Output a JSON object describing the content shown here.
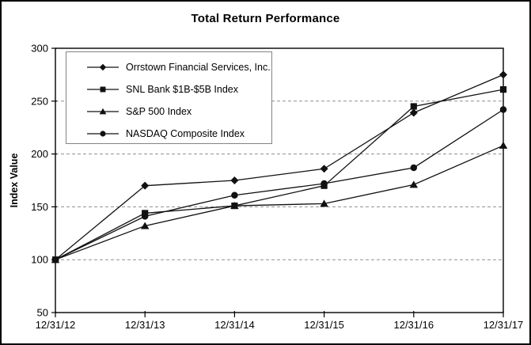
{
  "chart_data": {
    "type": "line",
    "title": "Total Return Performance",
    "ylabel": "Index Value",
    "xlabel": "",
    "x_labels": [
      "12/31/12",
      "12/31/13",
      "12/31/14",
      "12/31/15",
      "12/31/16",
      "12/31/17"
    ],
    "ylim": [
      50,
      300
    ],
    "y_ticks": [
      300,
      250,
      200,
      150,
      100,
      50
    ],
    "grid": "horizontal dashed gray lines at 100,150,200,250; solid box around plot",
    "legend_position": "inset top-left",
    "line_color": "#111111",
    "grid_color": "#909090",
    "series": [
      {
        "name": "Orrstown Financial Services, Inc.",
        "marker": "diamond",
        "values": [
          100,
          170,
          175,
          186,
          239,
          275
        ]
      },
      {
        "name": "SNL Bank $1B-$5B Index",
        "marker": "square",
        "values": [
          100,
          144,
          151,
          170,
          245,
          261
        ]
      },
      {
        "name": "S&P 500 Index",
        "marker": "triangle",
        "values": [
          100,
          132,
          151,
          153,
          171,
          208
        ]
      },
      {
        "name": "NASDAQ Composite Index",
        "marker": "circle",
        "values": [
          100,
          141,
          161,
          172,
          187,
          242
        ]
      }
    ]
  }
}
